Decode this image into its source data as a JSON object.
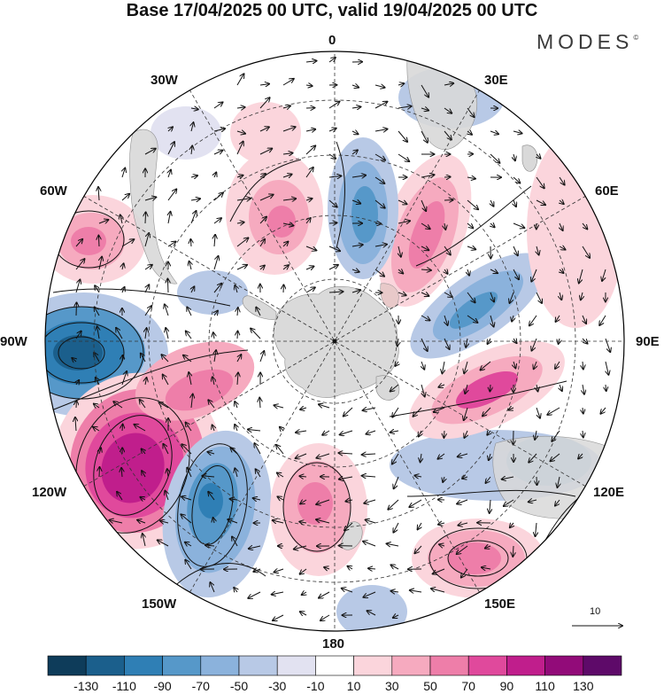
{
  "header": {
    "title": "Base 17/04/2025 00 UTC, valid 19/04/2025 00 UTC",
    "brand": "MODES",
    "brand_mark": "©"
  },
  "map": {
    "projection": "south-polar-stereographic",
    "longitude_labels": [
      {
        "id": "0",
        "text": "0"
      },
      {
        "id": "30E",
        "text": "30E"
      },
      {
        "id": "60E",
        "text": "60E"
      },
      {
        "id": "90E",
        "text": "90E"
      },
      {
        "id": "120E",
        "text": "120E"
      },
      {
        "id": "150E",
        "text": "150E"
      },
      {
        "id": "180",
        "text": "180"
      },
      {
        "id": "150W",
        "text": "150W"
      },
      {
        "id": "120W",
        "text": "120W"
      },
      {
        "id": "90W",
        "text": "90W"
      },
      {
        "id": "60W",
        "text": "60W"
      },
      {
        "id": "30W",
        "text": "30W"
      }
    ],
    "reference_vector": {
      "label": "10"
    },
    "land_color": "#d9d9d9",
    "grid": "dashed lat-lon"
  },
  "colorbar": {
    "colors": [
      "#0e3c5a",
      "#1b5f8c",
      "#2f7fb5",
      "#5698c9",
      "#8bb2dc",
      "#b8c9e6",
      "#e2e2f1",
      "#ffffff",
      "#fbd5dc",
      "#f6aabf",
      "#ee7ea9",
      "#e0499c",
      "#c01e8c",
      "#920b79",
      "#5e0a69"
    ],
    "labels": [
      "-130",
      "-110",
      "-90",
      "-70",
      "-50",
      "-30",
      "-10",
      "10",
      "30",
      "50",
      "70",
      "90",
      "110",
      "130"
    ]
  }
}
